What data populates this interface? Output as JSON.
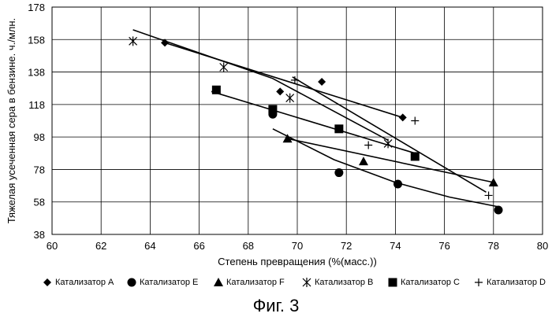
{
  "caption": "Фиг. 3",
  "chart_data": {
    "type": "scatter",
    "title": "",
    "xlabel": "Степень превращения (%(масс.))",
    "ylabel": "Тяжелая усеченная сера в бензине. ч./млн.",
    "xlim": [
      60,
      80
    ],
    "ylim": [
      38,
      178
    ],
    "xticks": [
      "60",
      "62",
      "64",
      "66",
      "68",
      "70",
      "72",
      "74",
      "76",
      "78",
      "80"
    ],
    "yticks": [
      "38",
      "58",
      "78",
      "98",
      "118",
      "138",
      "158",
      "178"
    ],
    "grid": true,
    "legend_position": "bottom",
    "series": [
      {
        "name": "Катализатор А",
        "marker": "diamond",
        "points": [
          [
            64.6,
            156
          ],
          [
            69.3,
            126
          ],
          [
            71.0,
            132
          ],
          [
            74.3,
            110
          ]
        ],
        "trend": [
          [
            64.5,
            156.5
          ],
          [
            74.3,
            110
          ]
        ]
      },
      {
        "name": "Катализатор E",
        "marker": "circle",
        "points": [
          [
            69.0,
            112
          ],
          [
            71.7,
            76
          ],
          [
            74.1,
            69
          ],
          [
            78.2,
            53
          ]
        ],
        "trend": [
          [
            69.0,
            103
          ],
          [
            71.5,
            84
          ],
          [
            74.0,
            70
          ],
          [
            76.2,
            61
          ],
          [
            78.2,
            55
          ]
        ]
      },
      {
        "name": "Катализатор F",
        "marker": "triangle",
        "points": [
          [
            69.6,
            97
          ],
          [
            72.7,
            83
          ],
          [
            78.0,
            70
          ]
        ],
        "trend": [
          [
            69.6,
            97
          ],
          [
            78.0,
            70
          ]
        ]
      },
      {
        "name": "Катализатор B",
        "marker": "asterisk",
        "points": [
          [
            63.3,
            157
          ],
          [
            67.0,
            141
          ],
          [
            69.7,
            122
          ],
          [
            73.7,
            94
          ]
        ],
        "trend": [
          [
            63.3,
            164
          ],
          [
            69.0,
            134
          ],
          [
            73.7,
            96
          ]
        ]
      },
      {
        "name": "Катализатор C",
        "marker": "square",
        "points": [
          [
            66.7,
            127
          ],
          [
            69.0,
            115
          ],
          [
            71.7,
            103
          ],
          [
            74.8,
            86
          ]
        ],
        "trend": [
          [
            66.5,
            126
          ],
          [
            74.8,
            88
          ]
        ]
      },
      {
        "name": "Катализатор D",
        "marker": "plus",
        "points": [
          [
            69.9,
            133
          ],
          [
            72.9,
            93
          ],
          [
            74.8,
            108
          ],
          [
            77.8,
            62
          ]
        ],
        "trend": [
          [
            69.8,
            135
          ],
          [
            77.7,
            64
          ]
        ]
      }
    ]
  }
}
